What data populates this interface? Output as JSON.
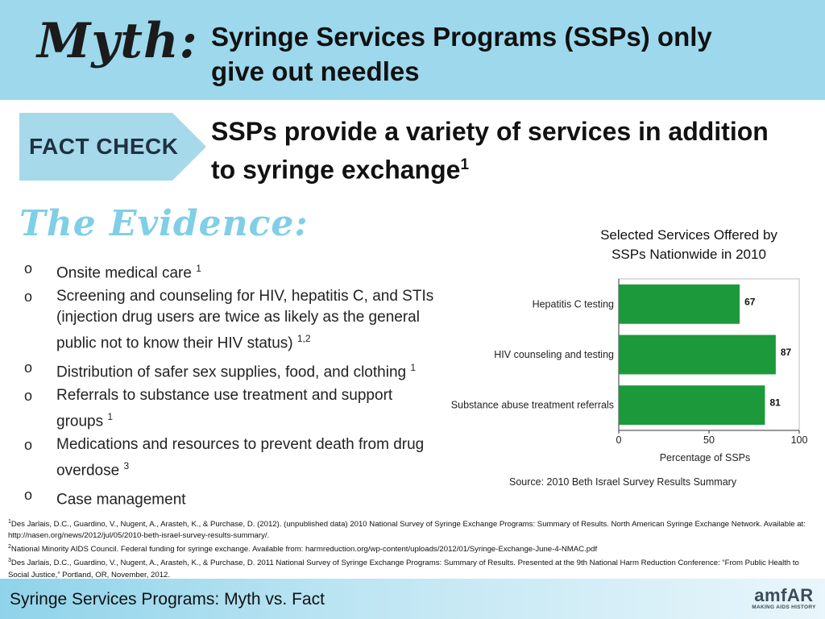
{
  "header": {
    "myth_label": "Myth:",
    "title_line1": "Syringe Services Programs (SSPs) only",
    "title_line2": "give out needles"
  },
  "fact": {
    "badge": "FACT CHECK",
    "title_line1": "SSPs provide a variety of services in addition",
    "title_line2": "to syringe exchange",
    "title_sup": "1"
  },
  "evidence": {
    "heading": "The Evidence:",
    "marker": "o",
    "items": [
      {
        "text": "Onsite medical care",
        "sup": "1"
      },
      {
        "text": "Screening and counseling for HIV, hepatitis C, and STIs (injection drug users are twice as likely as the general public not to know their HIV status)",
        "sup": "1,2"
      },
      {
        "text": "Distribution of safer sex supplies, food, and clothing",
        "sup": "1"
      },
      {
        "text": "Referrals to substance use treatment and support groups",
        "sup": "1"
      },
      {
        "text": "Medications and resources to prevent death from drug overdose",
        "sup": "3"
      },
      {
        "text": "Case management",
        "sup": ""
      }
    ]
  },
  "chart_title_line1": "Selected Services Offered by",
  "chart_title_line2": "SSPs Nationwide in 2010",
  "chart_data": {
    "type": "bar",
    "orientation": "horizontal",
    "categories": [
      "Hepatitis C testing",
      "HIV counseling and testing",
      "Substance abuse treatment referrals"
    ],
    "values": [
      67,
      87,
      81
    ],
    "xlabel": "Percentage of SSPs",
    "xlim": [
      0,
      100
    ],
    "xticks": [
      0,
      50,
      100
    ],
    "source": "Source: 2010 Beth Israel Survey Results Summary",
    "bar_color": "#1c9a3b",
    "grid": false
  },
  "references": [
    {
      "sup": "1",
      "text": "Des Jarlais, D.C., Guardino, V., Nugent, A., Arasteh, K., & Purchase, D. (2012). (unpublished data) 2010 National Survey of Syringe Exchange Programs: Summary of Results. North American Syringe Exchange Network. Available at: http://nasen.org/news/2012/jul/05/2010-beth-israel-survey-results-summary/."
    },
    {
      "sup": "2",
      "text": "National Minority AIDS Council. Federal funding for syringe exchange. Available from: harmreduction.org/wp-content/uploads/2012/01/Syringe-Exchange-June-4-NMAC.pdf"
    },
    {
      "sup": "3",
      "text": "Des Jarlais, D.C., Guardino, V., Nugent, A., Arasteh, K., & Purchase, D. 2011 National Survey of Syringe Exchange Programs: Summary of Results. Presented at the 9th National Harm Reduction Conference: “From Public Health to Social Justice,” Portland, OR, November, 2012."
    }
  ],
  "footer": {
    "text": "Syringe Services Programs:  Myth vs. Fact",
    "logo_main": "amfAR",
    "logo_sub": "MAKING AIDS HISTORY"
  },
  "colors": {
    "header_bg": "#9dd8ec",
    "badge_bg": "#a6d9ea",
    "evidence_heading": "#7fcfe6",
    "bar": "#1c9a3b"
  }
}
